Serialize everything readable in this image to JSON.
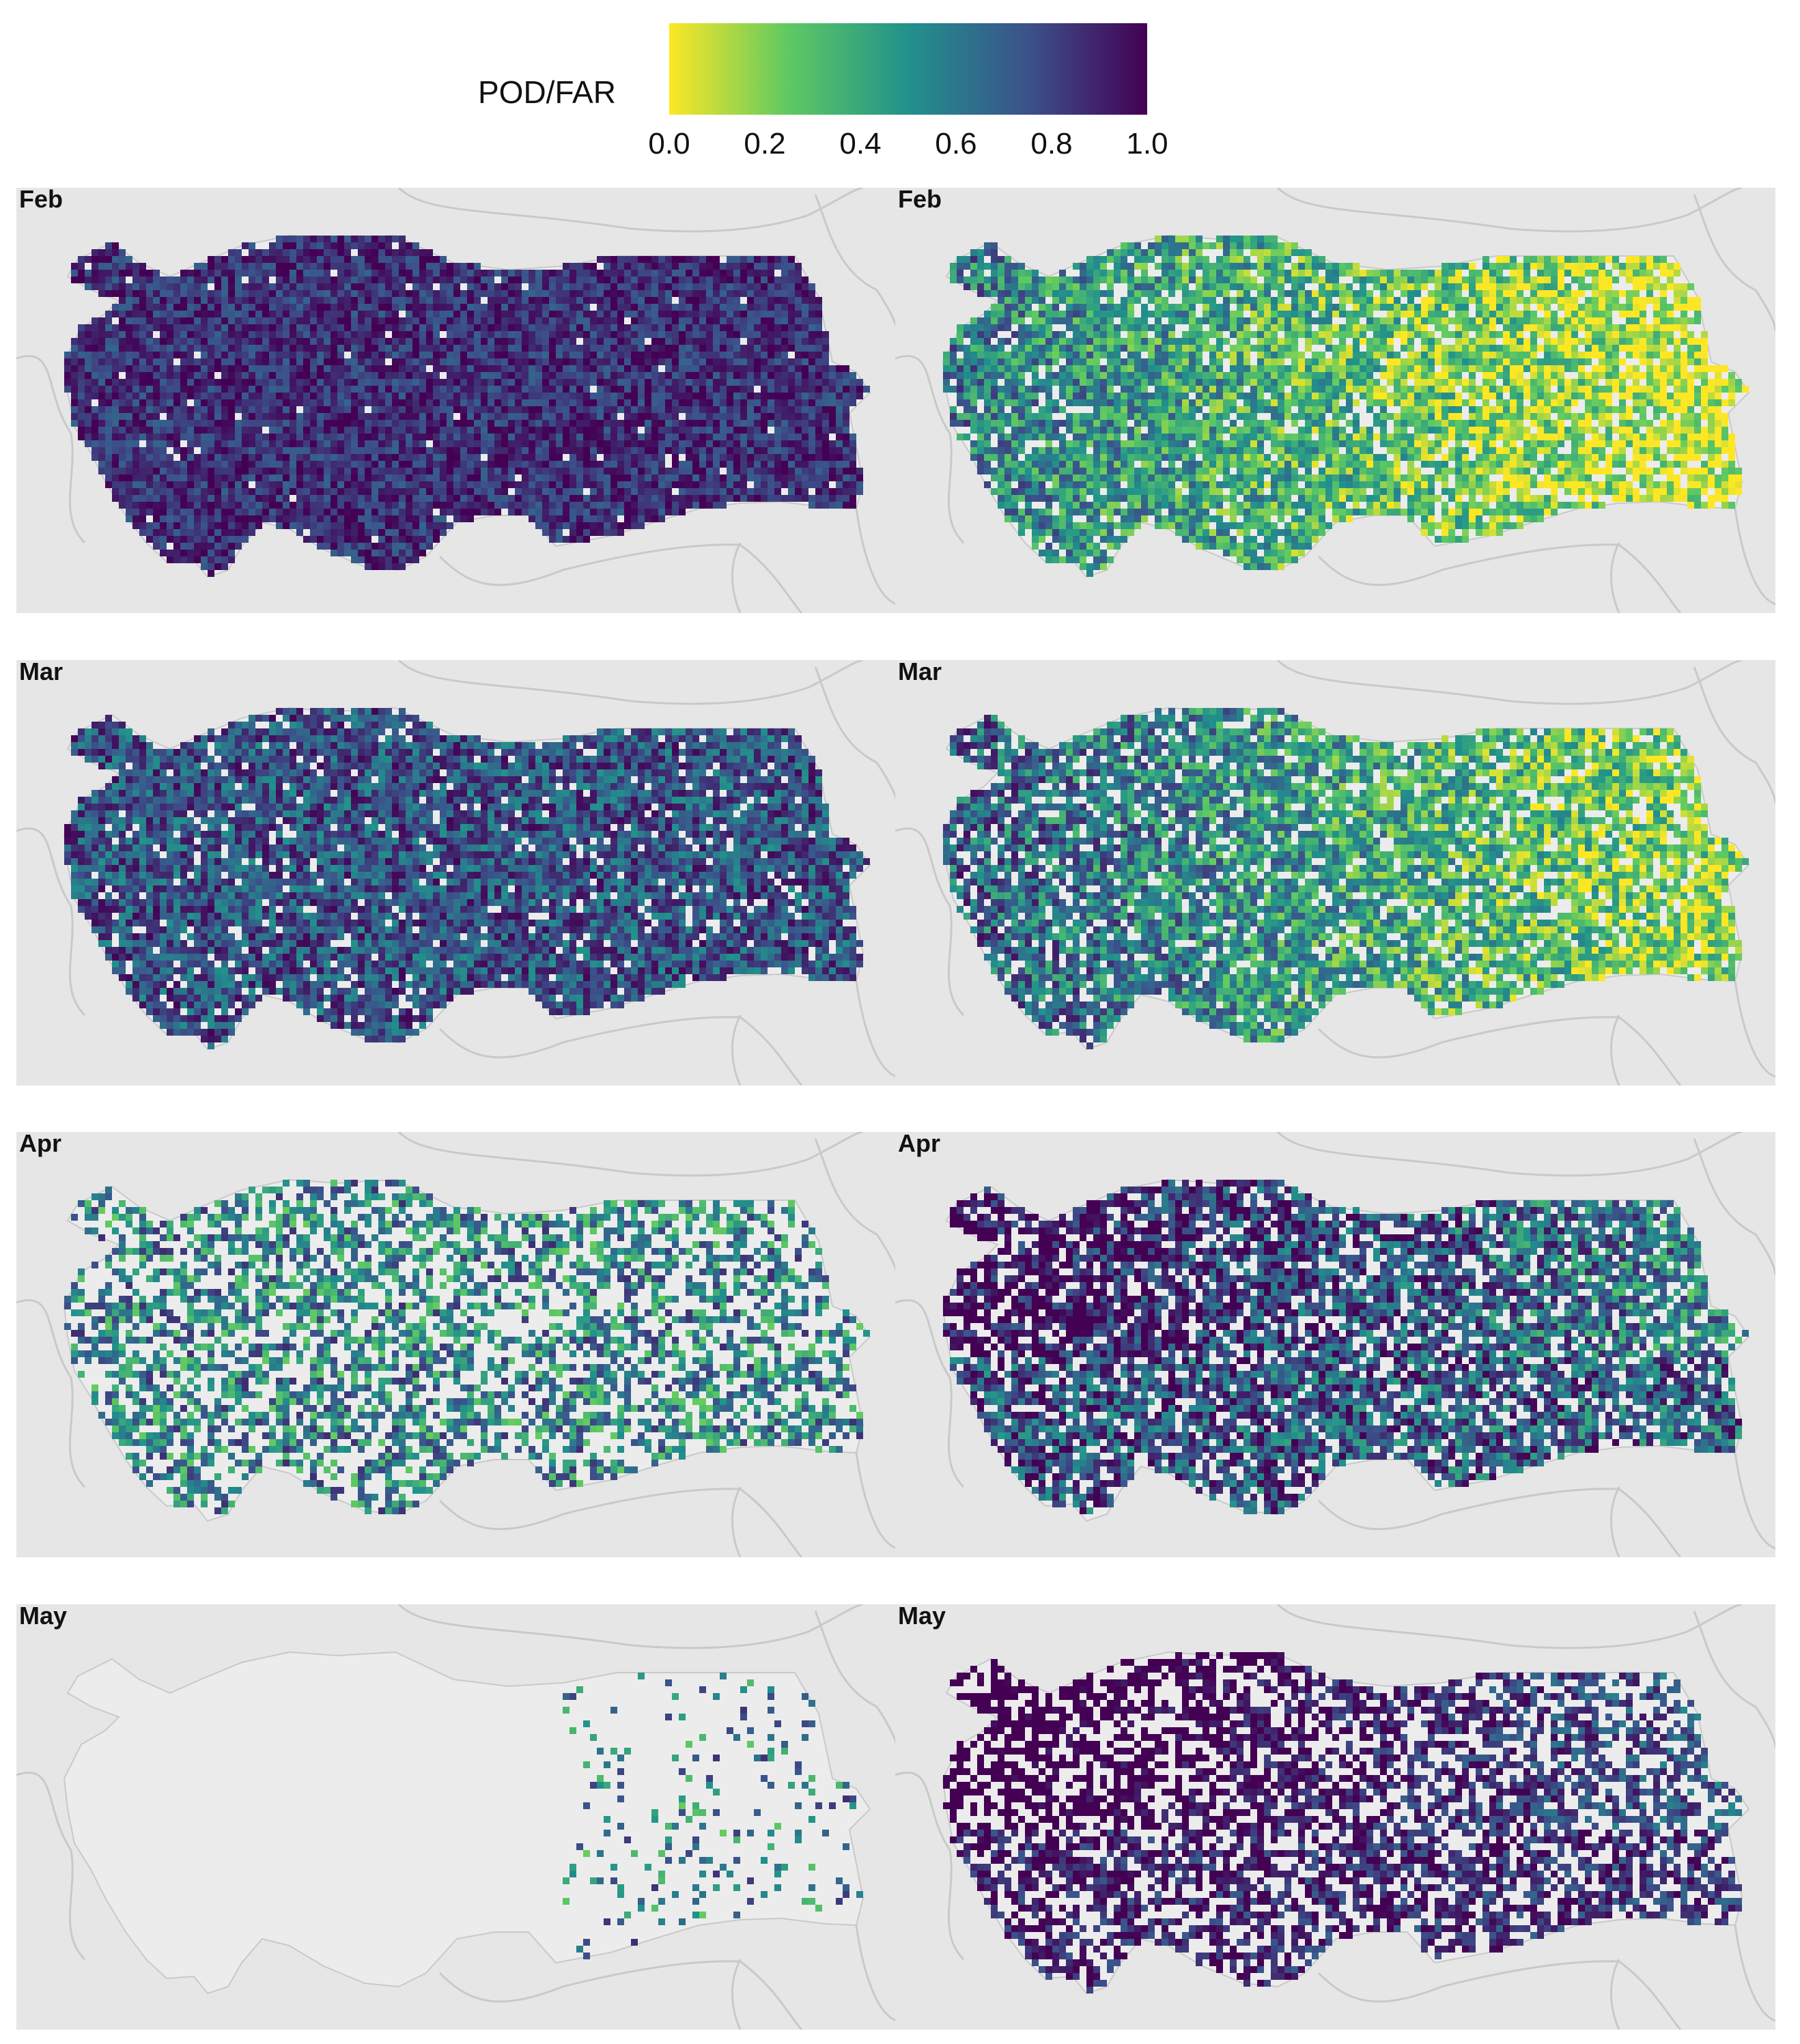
{
  "legend": {
    "title": "POD/FAR",
    "ticks": [
      "0.0",
      "0.2",
      "0.4",
      "0.6",
      "0.8",
      "1.0"
    ],
    "range": [
      0,
      1
    ],
    "palette": [
      "#fde725",
      "#5ec962",
      "#21918c",
      "#3b528b",
      "#440154"
    ]
  },
  "panels": [
    {
      "label": "Feb",
      "column": "left",
      "coverage": 0.98,
      "mean_value": 0.86,
      "spread": 0.18
    },
    {
      "label": "Feb",
      "column": "right",
      "coverage": 0.88,
      "mean_value": 0.3,
      "spread": 0.3
    },
    {
      "label": "Mar",
      "column": "left",
      "coverage": 0.93,
      "mean_value": 0.74,
      "spread": 0.25
    },
    {
      "label": "Mar",
      "column": "right",
      "coverage": 0.86,
      "mean_value": 0.42,
      "spread": 0.3
    },
    {
      "label": "Apr",
      "column": "left",
      "coverage": 0.55,
      "mean_value": 0.55,
      "spread": 0.32
    },
    {
      "label": "Apr",
      "column": "right",
      "coverage": 0.8,
      "mean_value": 0.72,
      "spread": 0.32
    },
    {
      "label": "May",
      "column": "left",
      "coverage": 0.12,
      "mean_value": 0.55,
      "spread": 0.32
    },
    {
      "label": "May",
      "column": "right",
      "coverage": 0.62,
      "mean_value": 0.88,
      "spread": 0.2
    }
  ],
  "colors": {
    "panel_background": "#e6e6e6",
    "land_background": "#ececec",
    "coastline": "#c9c9c9"
  }
}
